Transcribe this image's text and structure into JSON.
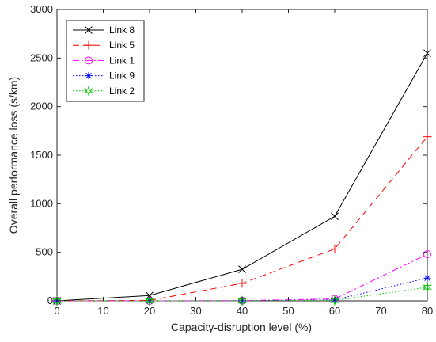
{
  "chart_data": {
    "type": "line",
    "title": "",
    "xlabel": "Capacity-disruption level (%)",
    "ylabel": "Overall performance loss (s/km)",
    "x": [
      0,
      20,
      40,
      60,
      80
    ],
    "xlim": [
      0,
      80
    ],
    "ylim": [
      0,
      3000
    ],
    "xticks": [
      0,
      10,
      20,
      30,
      40,
      50,
      60,
      70,
      80
    ],
    "yticks": [
      0,
      500,
      1000,
      1500,
      2000,
      2500,
      3000
    ],
    "grid": false,
    "legend_position": "top-left",
    "series": [
      {
        "name": "Link 8",
        "values": [
          0,
          55,
          325,
          870,
          2550
        ],
        "color": "#000000",
        "dash": "solid",
        "marker": "x"
      },
      {
        "name": "Link 5",
        "values": [
          0,
          5,
          180,
          535,
          1690
        ],
        "color": "#ff0000",
        "dash": "dashed",
        "marker": "plus"
      },
      {
        "name": "Link 1",
        "values": [
          0,
          0,
          2,
          20,
          480
        ],
        "color": "#ff00ff",
        "dash": "dashdot",
        "marker": "circle"
      },
      {
        "name": "Link 9",
        "values": [
          0,
          0,
          1,
          10,
          235
        ],
        "color": "#0000ff",
        "dash": "dotted",
        "marker": "asterisk"
      },
      {
        "name": "Link 2",
        "values": [
          0,
          0,
          0,
          5,
          140
        ],
        "color": "#00cc00",
        "dash": "dotted",
        "marker": "hexagram"
      }
    ]
  }
}
